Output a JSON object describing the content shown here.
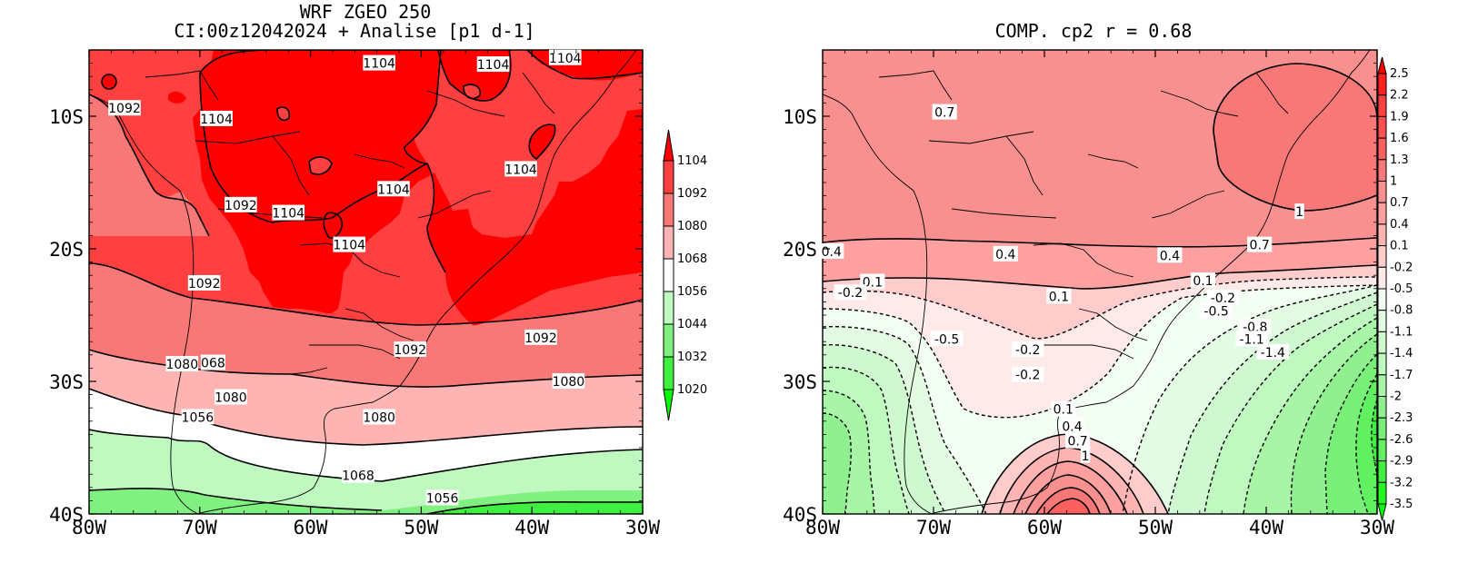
{
  "left": {
    "title_line1": "WRF ZGEO 250",
    "title_line2": "CI:00z12042024 + Analise  [p1 d-1]",
    "y_ticks": [
      "10S",
      "20S",
      "30S",
      "40S"
    ],
    "x_ticks": [
      "80W",
      "70W",
      "60W",
      "50W",
      "40W",
      "30W"
    ],
    "contour_labels": [
      {
        "text": "1092",
        "lon": -76.8,
        "lat": -9.4
      },
      {
        "text": "1104",
        "lon": -68.5,
        "lat": -10.2
      },
      {
        "text": "1104",
        "lon": -53.8,
        "lat": -6.0
      },
      {
        "text": "1104",
        "lon": -43.5,
        "lat": -6.1
      },
      {
        "text": "1104",
        "lon": -37.0,
        "lat": -5.6
      },
      {
        "text": "1104",
        "lon": -41.0,
        "lat": -14.0
      },
      {
        "text": "1104",
        "lon": -52.5,
        "lat": -15.5
      },
      {
        "text": "1092",
        "lon": -66.3,
        "lat": -16.7
      },
      {
        "text": "1104",
        "lon": -62.0,
        "lat": -17.3
      },
      {
        "text": "1104",
        "lon": -56.5,
        "lat": -19.7
      },
      {
        "text": "1092",
        "lon": -69.6,
        "lat": -22.6
      },
      {
        "text": "1092",
        "lon": -51.0,
        "lat": -27.6
      },
      {
        "text": "1092",
        "lon": -39.2,
        "lat": -26.7
      },
      {
        "text": "1080",
        "lon": -71.6,
        "lat": -28.7
      },
      {
        "text": "068",
        "lon": -68.8,
        "lat": -28.6
      },
      {
        "text": "1080",
        "lon": -67.2,
        "lat": -31.2
      },
      {
        "text": "1080",
        "lon": -36.7,
        "lat": -30.0
      },
      {
        "text": "1056",
        "lon": -70.2,
        "lat": -32.7
      },
      {
        "text": "1080",
        "lon": -53.8,
        "lat": -32.7
      },
      {
        "text": "1068",
        "lon": -55.7,
        "lat": -37.1
      },
      {
        "text": "1056",
        "lon": -48.1,
        "lat": -38.8
      }
    ],
    "colorbar": {
      "labels": [
        "1104",
        "1092",
        "1080",
        "1068",
        "1056",
        "1044",
        "1032",
        "1020"
      ],
      "colors": [
        "#ff0000",
        "#ff4040",
        "#f87878",
        "#ffb4b4",
        "#ffffff",
        "#c0f9c0",
        "#80f080",
        "#40f040",
        "#00ff00"
      ]
    }
  },
  "right": {
    "title": "COMP. cp2  r =  0.68",
    "y_ticks": [
      "10S",
      "20S",
      "30S",
      "40S"
    ],
    "x_ticks": [
      "80W",
      "70W",
      "60W",
      "50W",
      "40W",
      "30W"
    ],
    "contour_labels": [
      {
        "text": "0.7",
        "lon": -69.0,
        "lat": -9.7
      },
      {
        "text": "1",
        "lon": -37.0,
        "lat": -17.2
      },
      {
        "text": "0.7",
        "lon": -40.6,
        "lat": -19.7
      },
      {
        "text": "0.4",
        "lon": -79.2,
        "lat": -20.2
      },
      {
        "text": "0.4",
        "lon": -63.5,
        "lat": -20.4
      },
      {
        "text": "0.4",
        "lon": -48.7,
        "lat": -20.5
      },
      {
        "text": "0.1",
        "lon": -75.5,
        "lat": -22.5
      },
      {
        "text": "-0.2",
        "lon": -77.5,
        "lat": -23.3
      },
      {
        "text": "0.1",
        "lon": -58.7,
        "lat": -23.6
      },
      {
        "text": "0.1",
        "lon": -45.7,
        "lat": -22.4
      },
      {
        "text": "-0.2",
        "lon": -43.9,
        "lat": -23.7
      },
      {
        "text": "-0.5",
        "lon": -44.5,
        "lat": -24.7
      },
      {
        "text": "-0.8",
        "lon": -41.0,
        "lat": -25.9
      },
      {
        "text": "-1.1",
        "lon": -41.3,
        "lat": -26.8
      },
      {
        "text": "-1.4",
        "lon": -39.4,
        "lat": -27.8
      },
      {
        "text": "-0.5",
        "lon": -68.8,
        "lat": -26.8
      },
      {
        "text": "-0.2",
        "lon": -61.5,
        "lat": -27.6
      },
      {
        "text": "-0.2",
        "lon": -61.5,
        "lat": -29.5
      },
      {
        "text": "0.1",
        "lon": -58.3,
        "lat": -32.1
      },
      {
        "text": "0.4",
        "lon": -57.5,
        "lat": -33.4
      },
      {
        "text": "0.7",
        "lon": -57.0,
        "lat": -34.5
      },
      {
        "text": "1",
        "lon": -56.3,
        "lat": -35.6
      }
    ],
    "colorbar": {
      "labels": [
        "2.5",
        "2.2",
        "1.9",
        "1.6",
        "1.3",
        "1",
        "0.7",
        "0.4",
        "0.1",
        "-0.2",
        "-0.5",
        "-0.8",
        "-1.1",
        "-1.4",
        "-1.7",
        "-2",
        "-2.3",
        "-2.6",
        "-2.9",
        "-3.2",
        "-3.5"
      ],
      "colors": [
        "#ff0000",
        "#ff2020",
        "#ff4040",
        "#ff5050",
        "#fa6060",
        "#f87878",
        "#f89090",
        "#ffa0a0",
        "#ffb4b4",
        "#ffcccc",
        "#ffeaea",
        "#f4fff4",
        "#e2fbe2",
        "#d0f8d0",
        "#c0f9c0",
        "#a8f5a8",
        "#90f090",
        "#78f078",
        "#60f060",
        "#40f040",
        "#20f820",
        "#00ff00"
      ]
    }
  }
}
